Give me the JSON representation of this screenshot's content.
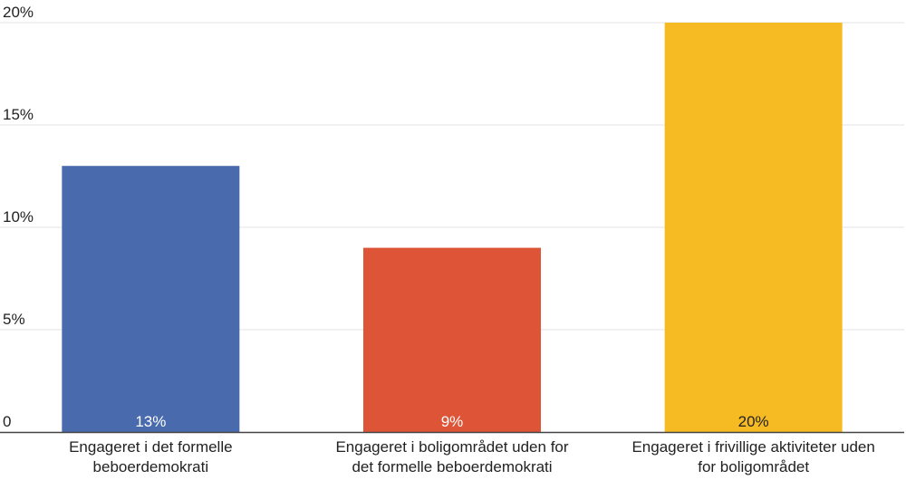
{
  "chart_data": {
    "type": "bar",
    "categories": [
      [
        "Engageret i det formelle",
        "beboerdemokrati"
      ],
      [
        "Engageret i boligområdet uden for",
        "det formelle beboerdemokrati"
      ],
      [
        "Engageret i frivillige aktiviteter uden",
        "for boligområdet"
      ]
    ],
    "values": [
      13,
      9,
      20
    ],
    "value_labels": [
      "13%",
      "9%",
      "20%"
    ],
    "colors": [
      "#4a6aae",
      "#de5436",
      "#f6bb23"
    ],
    "value_label_colors": [
      "#ffffff",
      "#ffffff",
      "#222222"
    ],
    "y_ticks": [
      0,
      5,
      10,
      15,
      20
    ],
    "y_tick_labels": [
      "0",
      "5%",
      "10%",
      "15%",
      "20%"
    ],
    "ylim": [
      0,
      20
    ],
    "grid": true,
    "legend": "none",
    "title": "",
    "xlabel": "",
    "ylabel": ""
  }
}
